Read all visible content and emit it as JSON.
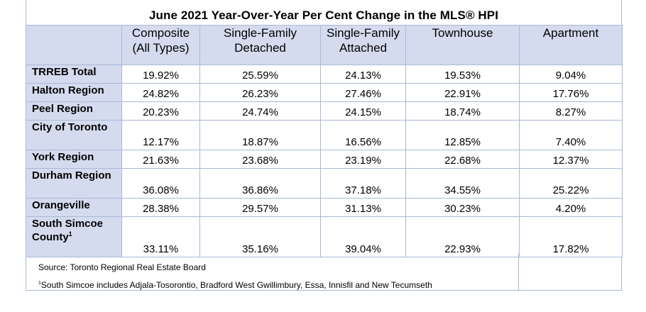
{
  "title": "June 2021 Year-Over-Year Per Cent Change in the MLS® HPI",
  "columns": [
    {
      "line1": "Composite",
      "line2": "(All Types)"
    },
    {
      "line1": "Single-Family",
      "line2": "Detached"
    },
    {
      "line1": "Single-Family",
      "line2": "Attached"
    },
    {
      "line1": "Townhouse",
      "line2": ""
    },
    {
      "line1": "Apartment",
      "line2": ""
    }
  ],
  "rows": [
    {
      "region": "TRREB Total",
      "values": [
        "19.92%",
        "25.59%",
        "24.13%",
        "19.53%",
        "9.04%"
      ]
    },
    {
      "region": "Halton Region",
      "values": [
        "24.82%",
        "26.23%",
        "27.46%",
        "22.91%",
        "17.76%"
      ]
    },
    {
      "region": "Peel Region",
      "values": [
        "20.23%",
        "24.74%",
        "24.15%",
        "18.74%",
        "8.27%"
      ]
    },
    {
      "region": "City of Toronto",
      "values": [
        "12.17%",
        "18.87%",
        "16.56%",
        "12.85%",
        "7.40%"
      ]
    },
    {
      "region": "York Region",
      "values": [
        "21.63%",
        "23.68%",
        "23.19%",
        "22.68%",
        "12.37%"
      ]
    },
    {
      "region": "Durham Region",
      "values": [
        "36.08%",
        "36.86%",
        "37.18%",
        "34.55%",
        "25.22%"
      ]
    },
    {
      "region": "Orangeville",
      "values": [
        "28.38%",
        "29.57%",
        "31.13%",
        "30.23%",
        "4.20%"
      ]
    },
    {
      "region": "South Simcoe County",
      "footnote_mark": "1",
      "values": [
        "33.11%",
        "35.16%",
        "39.04%",
        "22.93%",
        "17.82%"
      ]
    }
  ],
  "notes": {
    "source": "Source: Toronto Regional Real Estate Board",
    "footnote_mark": "1",
    "footnote": "South Simcoe includes Adjala-Tosorontio, Bradford West Gwillimbury, Essa, Innisfil and New Tecumseth"
  }
}
